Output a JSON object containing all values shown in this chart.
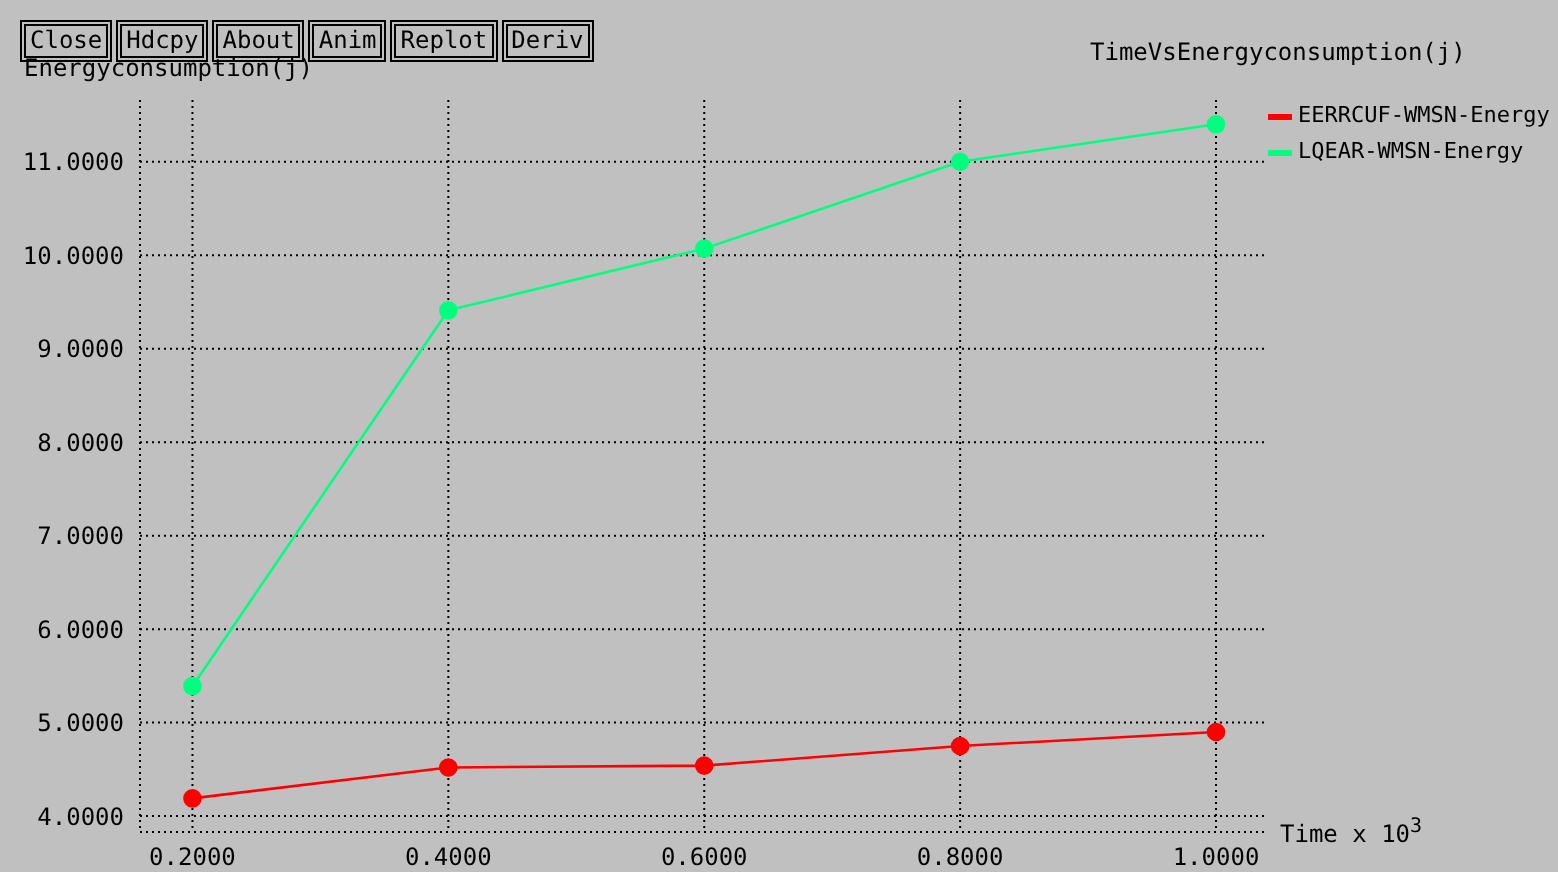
{
  "chart_data": {
    "type": "line",
    "title": "TimeVsEnergyconsumption(j)",
    "xlabel": "Time x 10$^{3}$",
    "ylabel": "Energyconsumption(j)",
    "annotations": [
      "Close",
      "Hdcpy",
      "About",
      "Anim",
      "Replot",
      "Deriv"
    ],
    "x": [
      0.2,
      0.4,
      0.6,
      0.8,
      1.0
    ],
    "series": [
      {
        "name": "EERRCUF-WMSN-Energy",
        "color": "#ff0000",
        "values": [
          4.19,
          4.52,
          4.54,
          4.75,
          4.9
        ]
      },
      {
        "name": "LQEAR-WMSN-Energy",
        "color": "#00ff7f",
        "values": [
          5.39,
          9.41,
          10.07,
          11.0,
          11.4
        ]
      }
    ],
    "xlim": [
      0.159,
      1.0375
    ],
    "ylim": [
      3.83,
      11.66
    ],
    "xticks": [
      {
        "value": 0.2,
        "label": "0.2000"
      },
      {
        "value": 0.4,
        "label": "0.4000"
      },
      {
        "value": 0.6,
        "label": "0.6000"
      },
      {
        "value": 0.8,
        "label": "0.8000"
      },
      {
        "value": 1.0,
        "label": "1.0000"
      }
    ],
    "yticks": [
      {
        "value": 4,
        "label": "4.0000"
      },
      {
        "value": 5,
        "label": "5.0000"
      },
      {
        "value": 6,
        "label": "6.0000"
      },
      {
        "value": 7,
        "label": "7.0000"
      },
      {
        "value": 8,
        "label": "8.0000"
      },
      {
        "value": 9,
        "label": "9.0000"
      },
      {
        "value": 10,
        "label": "10.0000"
      },
      {
        "value": 11,
        "label": "11.0000"
      }
    ],
    "grid": true,
    "legend": "top right",
    "marker": "circle",
    "line_style": "solid"
  }
}
